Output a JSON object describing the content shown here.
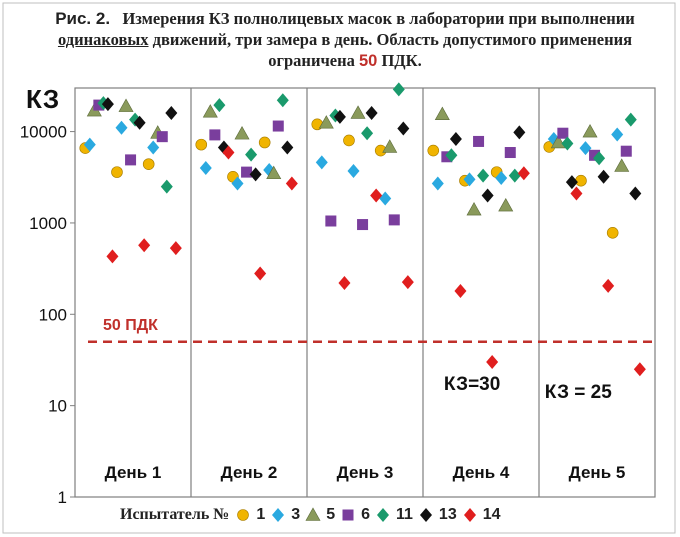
{
  "figure": {
    "lead": "Рис. 2.",
    "title_part1": "Измерения КЗ полнолицевых масок в лаборатории при выполнении",
    "title_underlined": "одинаковых",
    "title_part2": "движений, три замера в день. Область допустимого применения ограничена",
    "title_limit": "50",
    "title_end": "ПДК."
  },
  "colors": {
    "limit_line": "#c0302b",
    "frame": "#7f7f7f"
  },
  "chart_data": {
    "type": "scatter",
    "ylabel": "КЗ",
    "yscale": "log",
    "ylim": [
      1,
      30000
    ],
    "yticks": [
      1,
      10,
      100,
      1000,
      10000
    ],
    "ytick_labels": [
      "1",
      "10",
      "100",
      "1000",
      "10000"
    ],
    "groups": [
      "День 1",
      "День 2",
      "День 3",
      "День 4",
      "День 5"
    ],
    "reference_line": {
      "y": 50,
      "label": "50 ПДК",
      "style": "dashed",
      "color": "#c0302b"
    },
    "annotations": [
      {
        "text": "КЗ=30",
        "group": "День 4"
      },
      {
        "text": "КЗ = 25",
        "group": "День 5"
      }
    ],
    "legend_title": "Испытатель №",
    "series": [
      {
        "name": "1",
        "marker": "circle",
        "color": "#f0b400",
        "points": [
          [
            1,
            6600
          ],
          [
            1,
            3600
          ],
          [
            1,
            4400
          ],
          [
            2,
            7200
          ],
          [
            2,
            3200
          ],
          [
            2,
            7600
          ],
          [
            3,
            12000
          ],
          [
            3,
            8000
          ],
          [
            3,
            6200
          ],
          [
            4,
            6200
          ],
          [
            4,
            2900
          ],
          [
            4,
            3600
          ],
          [
            5,
            6800
          ],
          [
            5,
            2900
          ],
          [
            5,
            780
          ]
        ]
      },
      {
        "name": "3",
        "marker": "diamond",
        "color": "#2aa9e0",
        "points": [
          [
            1,
            7200
          ],
          [
            1,
            11000
          ],
          [
            1,
            6700
          ],
          [
            2,
            4000
          ],
          [
            2,
            2700
          ],
          [
            2,
            3800
          ],
          [
            3,
            4600
          ],
          [
            3,
            3700
          ],
          [
            3,
            1850
          ],
          [
            4,
            2700
          ],
          [
            4,
            3000
          ],
          [
            4,
            3100
          ],
          [
            5,
            8300
          ],
          [
            5,
            6600
          ],
          [
            5,
            9300
          ]
        ]
      },
      {
        "name": "5",
        "marker": "triangle",
        "color": "#8a9a5b",
        "points": [
          [
            1,
            17000
          ],
          [
            1,
            19000
          ],
          [
            1,
            9700
          ],
          [
            2,
            16500
          ],
          [
            2,
            9500
          ],
          [
            2,
            3500
          ],
          [
            3,
            12500
          ],
          [
            3,
            16000
          ],
          [
            3,
            6800
          ],
          [
            4,
            15500
          ],
          [
            4,
            1400
          ],
          [
            4,
            1550
          ],
          [
            5,
            7600
          ],
          [
            5,
            10000
          ],
          [
            5,
            4200
          ]
        ]
      },
      {
        "name": "6",
        "marker": "square",
        "color": "#7a3e9d",
        "points": [
          [
            1,
            19500
          ],
          [
            1,
            4900
          ],
          [
            1,
            8800
          ],
          [
            2,
            9200
          ],
          [
            2,
            3600
          ],
          [
            2,
            11500
          ],
          [
            3,
            1050
          ],
          [
            3,
            960
          ],
          [
            3,
            1080
          ],
          [
            4,
            5300
          ],
          [
            4,
            7800
          ],
          [
            4,
            5900
          ],
          [
            5,
            9600
          ],
          [
            5,
            5500
          ],
          [
            5,
            6100
          ]
        ]
      },
      {
        "name": "11",
        "marker": "diamond",
        "color": "#1a9a6c",
        "points": [
          [
            1,
            20500
          ],
          [
            1,
            13500
          ],
          [
            1,
            2500
          ],
          [
            2,
            19500
          ],
          [
            2,
            5600
          ],
          [
            2,
            22000
          ],
          [
            3,
            15000
          ],
          [
            3,
            9600
          ],
          [
            3,
            29000
          ],
          [
            4,
            5500
          ],
          [
            4,
            3300
          ],
          [
            4,
            3300
          ],
          [
            5,
            7400
          ],
          [
            5,
            5100
          ],
          [
            5,
            13500
          ]
        ]
      },
      {
        "name": "13",
        "marker": "diamond",
        "color": "#111111",
        "points": [
          [
            1,
            20000
          ],
          [
            1,
            12500
          ],
          [
            1,
            16000
          ],
          [
            2,
            6700
          ],
          [
            2,
            3400
          ],
          [
            2,
            6700
          ],
          [
            3,
            14500
          ],
          [
            3,
            16000
          ],
          [
            3,
            10800
          ],
          [
            4,
            8300
          ],
          [
            4,
            2000
          ],
          [
            4,
            9800
          ],
          [
            5,
            2800
          ],
          [
            5,
            3200
          ],
          [
            5,
            2100
          ]
        ]
      },
      {
        "name": "14",
        "marker": "diamond",
        "color": "#e01e1e",
        "points": [
          [
            1,
            430
          ],
          [
            1,
            570
          ],
          [
            1,
            530
          ],
          [
            2,
            5900
          ],
          [
            2,
            280
          ],
          [
            2,
            2700
          ],
          [
            3,
            220
          ],
          [
            3,
            2000
          ],
          [
            3,
            225
          ],
          [
            4,
            180
          ],
          [
            4,
            30
          ],
          [
            4,
            3500
          ],
          [
            5,
            2100
          ],
          [
            5,
            205
          ],
          [
            5,
            25
          ]
        ]
      }
    ]
  }
}
